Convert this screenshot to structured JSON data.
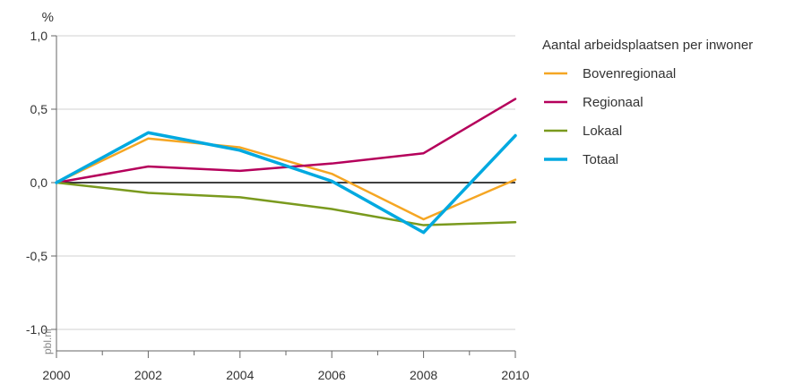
{
  "chart_data": {
    "type": "line",
    "ylabel": "%",
    "x": [
      2000,
      2002,
      2004,
      2006,
      2008,
      2010
    ],
    "x_tick_labels": [
      "2000",
      "2002",
      "2004",
      "2006",
      "2008",
      "2010"
    ],
    "xlim": [
      2000,
      2010
    ],
    "ylim": [
      -1.0,
      1.0
    ],
    "y_ticks": [
      -1.0,
      -0.5,
      0.0,
      0.5,
      1.0
    ],
    "y_tick_labels": [
      "-1,0",
      "-0,5",
      "0,0",
      "0,5",
      "1,0"
    ],
    "grid": "horizontal",
    "legend_title": "Aantal arbeidsplaatsen per inwoner",
    "legend_position": "right",
    "watermark": "pbl.nl",
    "series": [
      {
        "name": "Bovenregionaal",
        "color": "#f5a623",
        "values": [
          0.0,
          0.3,
          0.24,
          0.06,
          -0.25,
          0.02
        ]
      },
      {
        "name": "Regionaal",
        "color": "#b5005b",
        "values": [
          0.0,
          0.11,
          0.08,
          0.13,
          0.2,
          0.57
        ]
      },
      {
        "name": "Lokaal",
        "color": "#7a9a1e",
        "values": [
          0.0,
          -0.07,
          -0.1,
          -0.18,
          -0.29,
          -0.27
        ]
      },
      {
        "name": "Totaal",
        "color": "#00a9e0",
        "values": [
          0.0,
          0.34,
          0.22,
          0.01,
          -0.34,
          0.32
        ]
      }
    ]
  }
}
